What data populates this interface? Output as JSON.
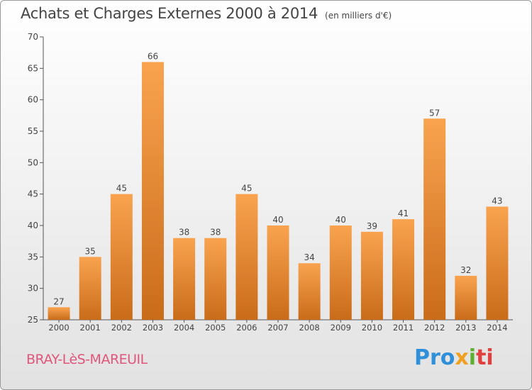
{
  "header": {
    "title": "Achats et Charges Externes 2000 à 2014",
    "subtitle": "(en milliers d'€)"
  },
  "footer": {
    "commune": "BRAY-LèS-MAREUIL",
    "brand": [
      "Pro",
      "x",
      "i",
      "ti"
    ]
  },
  "colors": {
    "bar_light": "#f9a34f",
    "bar_dark": "#c96c1a",
    "commune_text": "#e0567a",
    "brand_blue": "#2f8fd8",
    "brand_orange": "#f0a020",
    "brand_green": "#60b030",
    "brand_red": "#e04040"
  },
  "chart_data": {
    "type": "bar",
    "title": "Achats et Charges Externes 2000 à 2014",
    "subtitle": "(en milliers d'€)",
    "xlabel": "",
    "ylabel": "",
    "categories": [
      "2000",
      "2001",
      "2002",
      "2003",
      "2004",
      "2005",
      "2006",
      "2007",
      "2008",
      "2009",
      "2010",
      "2011",
      "2012",
      "2013",
      "2014"
    ],
    "values": [
      27,
      35,
      45,
      66,
      38,
      38,
      45,
      40,
      34,
      40,
      39,
      41,
      57,
      32,
      43
    ],
    "ylim": [
      25,
      70
    ],
    "yticks": [
      25,
      30,
      35,
      40,
      45,
      50,
      55,
      60,
      65,
      70
    ],
    "grid": false,
    "data_labels": true
  }
}
